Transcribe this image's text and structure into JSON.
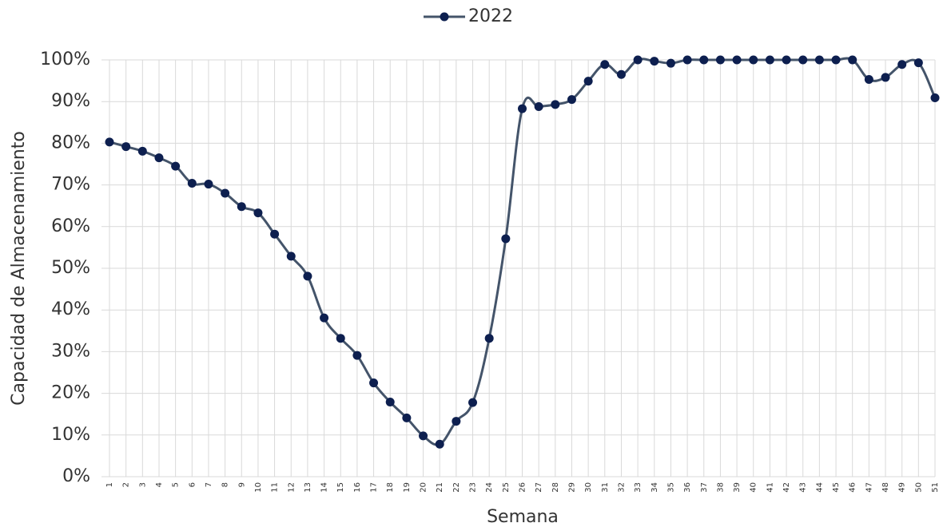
{
  "chart_data": {
    "type": "line",
    "x_label": "Semana",
    "y_label": "Capacidad de Almacenamiento",
    "categories": [
      "1",
      "2",
      "3",
      "4",
      "5",
      "6",
      "7",
      "8",
      "9",
      "10",
      "11",
      "12",
      "13",
      "14",
      "15",
      "16",
      "17",
      "18",
      "19",
      "20",
      "21",
      "22",
      "23",
      "24",
      "25",
      "26",
      "27",
      "28",
      "29",
      "30",
      "31",
      "32",
      "33",
      "34",
      "35",
      "36",
      "37",
      "38",
      "39",
      "40",
      "41",
      "42",
      "43",
      "44",
      "45",
      "46",
      "47",
      "48",
      "49",
      "50",
      "51"
    ],
    "series": [
      {
        "name": "2022",
        "color": "#44546a",
        "marker_color": "#0d1f4f",
        "values": [
          80.3,
          79.2,
          78.1,
          76.5,
          74.5,
          70.4,
          70.2,
          68.0,
          64.8,
          63.3,
          58.2,
          52.9,
          48.1,
          38.1,
          33.2,
          29.1,
          22.5,
          17.9,
          14.1,
          9.8,
          7.8,
          13.3,
          17.8,
          33.2,
          57.1,
          88.3,
          88.8,
          89.3,
          90.5,
          94.9,
          98.9,
          96.5,
          100,
          99.7,
          99.2,
          100,
          100,
          100,
          100,
          100,
          100,
          100,
          100,
          100,
          100,
          100,
          95.3,
          95.8,
          98.9,
          99.3,
          90.9
        ]
      }
    ],
    "ylim": [
      0,
      100
    ],
    "yticks": [
      {
        "value": 0,
        "label": "0%"
      },
      {
        "value": 10,
        "label": "10%"
      },
      {
        "value": 20,
        "label": "20%"
      },
      {
        "value": 30,
        "label": "30%"
      },
      {
        "value": 40,
        "label": "40%"
      },
      {
        "value": 50,
        "label": "50%"
      },
      {
        "value": 60,
        "label": "60%"
      },
      {
        "value": 70,
        "label": "70%"
      },
      {
        "value": 80,
        "label": "80%"
      },
      {
        "value": 90,
        "label": "90%"
      },
      {
        "value": 100,
        "label": "100%"
      }
    ],
    "grid": true,
    "legend": "top"
  }
}
